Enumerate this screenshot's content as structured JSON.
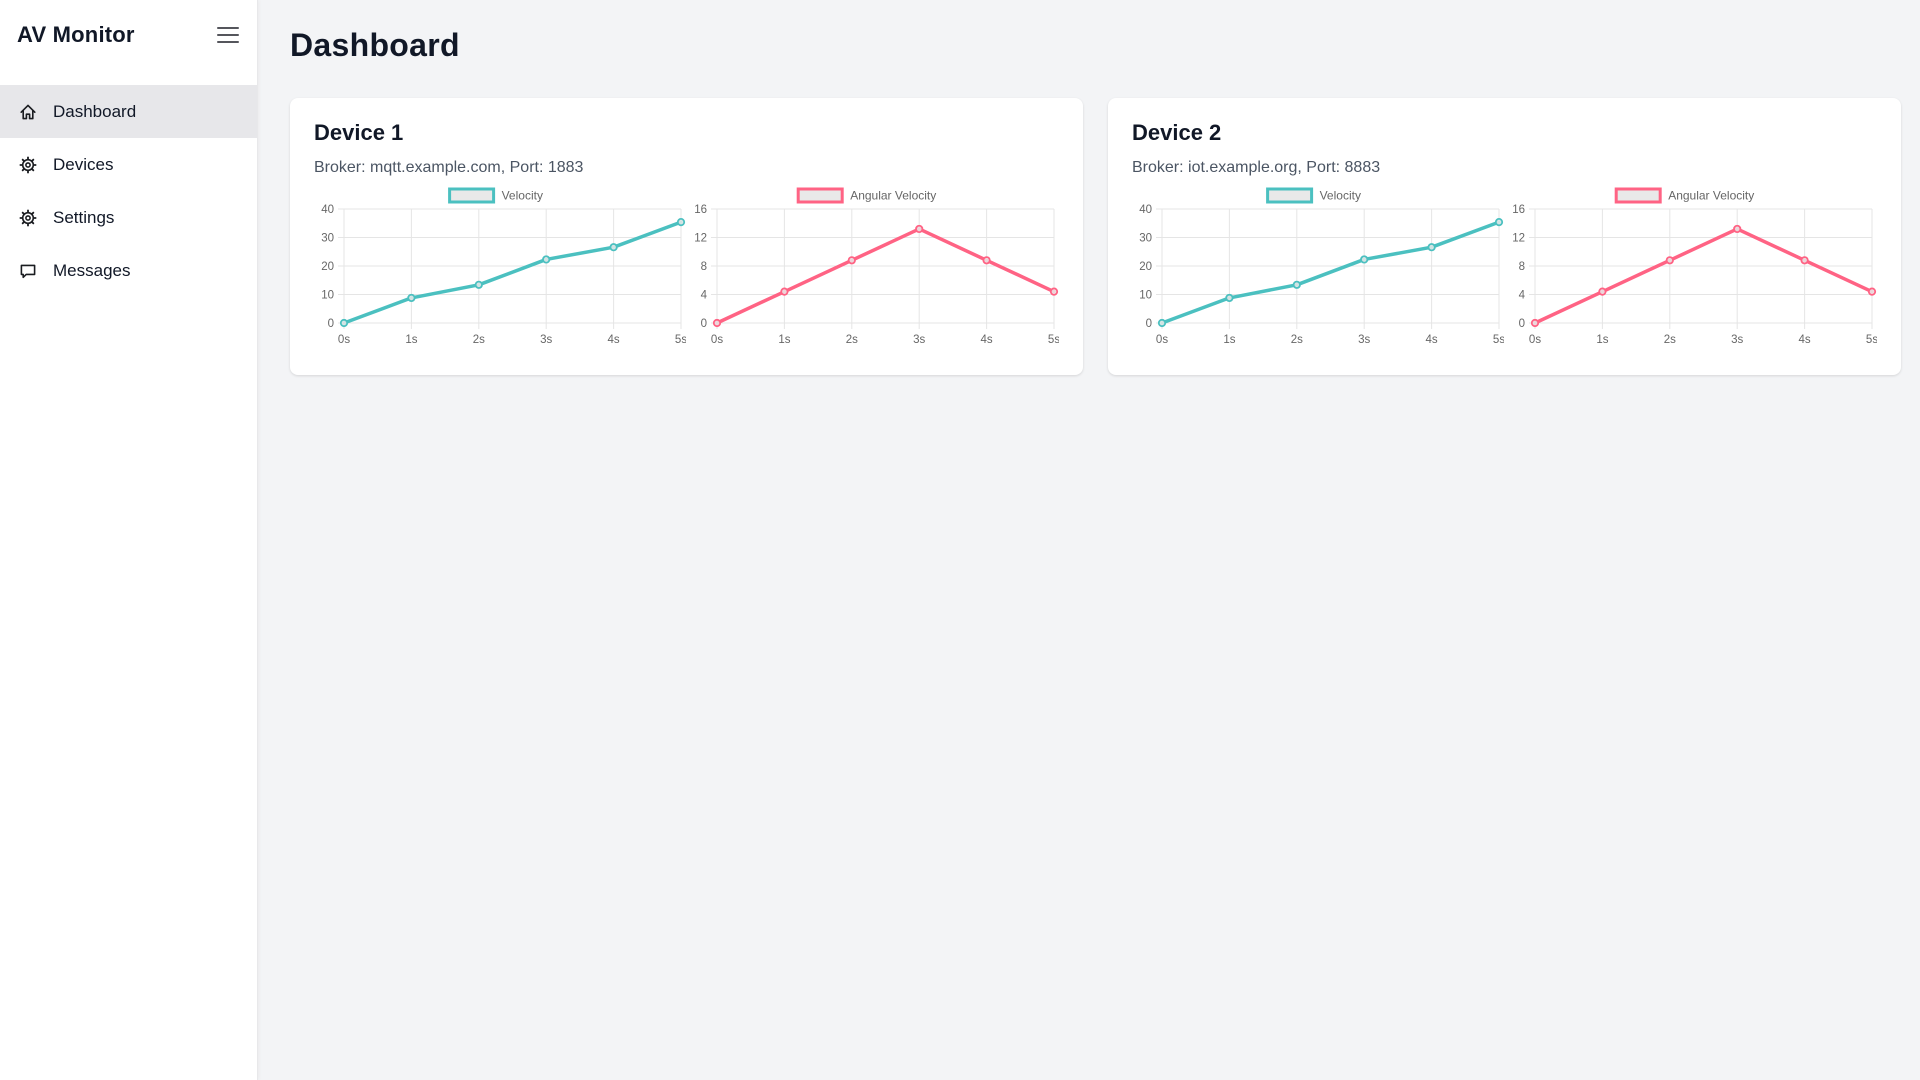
{
  "app_title": "AV Monitor",
  "sidebar": {
    "items": [
      {
        "label": "Dashboard",
        "icon": "home-icon",
        "active": true
      },
      {
        "label": "Devices",
        "icon": "gear-icon",
        "active": false
      },
      {
        "label": "Settings",
        "icon": "gear-icon",
        "active": false
      },
      {
        "label": "Messages",
        "icon": "message-icon",
        "active": false
      }
    ]
  },
  "header": {
    "title": "Dashboard"
  },
  "devices": [
    {
      "name": "Device 1",
      "broker": "Broker: mqtt.example.com, Port: 1883",
      "chart_indexes": [
        0,
        1
      ]
    },
    {
      "name": "Device 2",
      "broker": "Broker: iot.example.org, Port: 8883",
      "chart_indexes": [
        2,
        3
      ]
    }
  ],
  "colors": {
    "velocity": "#4BC0C0",
    "angular_velocity": "#FF6384",
    "legend_fill": "#e9e9e9",
    "grid": "#e5e5e5",
    "tick_text": "#666666",
    "active_nav_bg": "#e7e7ea",
    "main_bg": "#f3f4f6"
  },
  "chart_data": [
    {
      "type": "line",
      "device": "Device 1",
      "legend": "Velocity",
      "x": [
        "0s",
        "1s",
        "2s",
        "3s",
        "4s",
        "5s"
      ],
      "values": [
        0,
        8.8,
        13.4,
        22.3,
        26.6,
        35.4
      ],
      "ylim": [
        0,
        40
      ],
      "yticks": [
        0,
        10,
        20,
        30,
        40
      ],
      "xlabel": "",
      "ylabel": "",
      "color": "#4BC0C0",
      "grid": true,
      "legend_position": "top"
    },
    {
      "type": "line",
      "device": "Device 1",
      "legend": "Angular Velocity",
      "x": [
        "0s",
        "1s",
        "2s",
        "3s",
        "4s",
        "5s"
      ],
      "values": [
        0,
        4.4,
        8.8,
        13.2,
        8.8,
        4.4
      ],
      "ylim": [
        0,
        16
      ],
      "yticks": [
        0,
        4,
        8,
        12,
        16
      ],
      "xlabel": "",
      "ylabel": "",
      "color": "#FF6384",
      "grid": true,
      "legend_position": "top"
    },
    {
      "type": "line",
      "device": "Device 2",
      "legend": "Velocity",
      "x": [
        "0s",
        "1s",
        "2s",
        "3s",
        "4s",
        "5s"
      ],
      "values": [
        0,
        8.8,
        13.4,
        22.3,
        26.6,
        35.4
      ],
      "ylim": [
        0,
        40
      ],
      "yticks": [
        0,
        10,
        20,
        30,
        40
      ],
      "xlabel": "",
      "ylabel": "",
      "color": "#4BC0C0",
      "grid": true,
      "legend_position": "top"
    },
    {
      "type": "line",
      "device": "Device 2",
      "legend": "Angular Velocity",
      "x": [
        "0s",
        "1s",
        "2s",
        "3s",
        "4s",
        "5s"
      ],
      "values": [
        0,
        4.4,
        8.8,
        13.2,
        8.8,
        4.4
      ],
      "ylim": [
        0,
        16
      ],
      "yticks": [
        0,
        4,
        8,
        12,
        16
      ],
      "xlabel": "",
      "ylabel": "",
      "color": "#FF6384",
      "grid": true,
      "legend_position": "top"
    }
  ]
}
